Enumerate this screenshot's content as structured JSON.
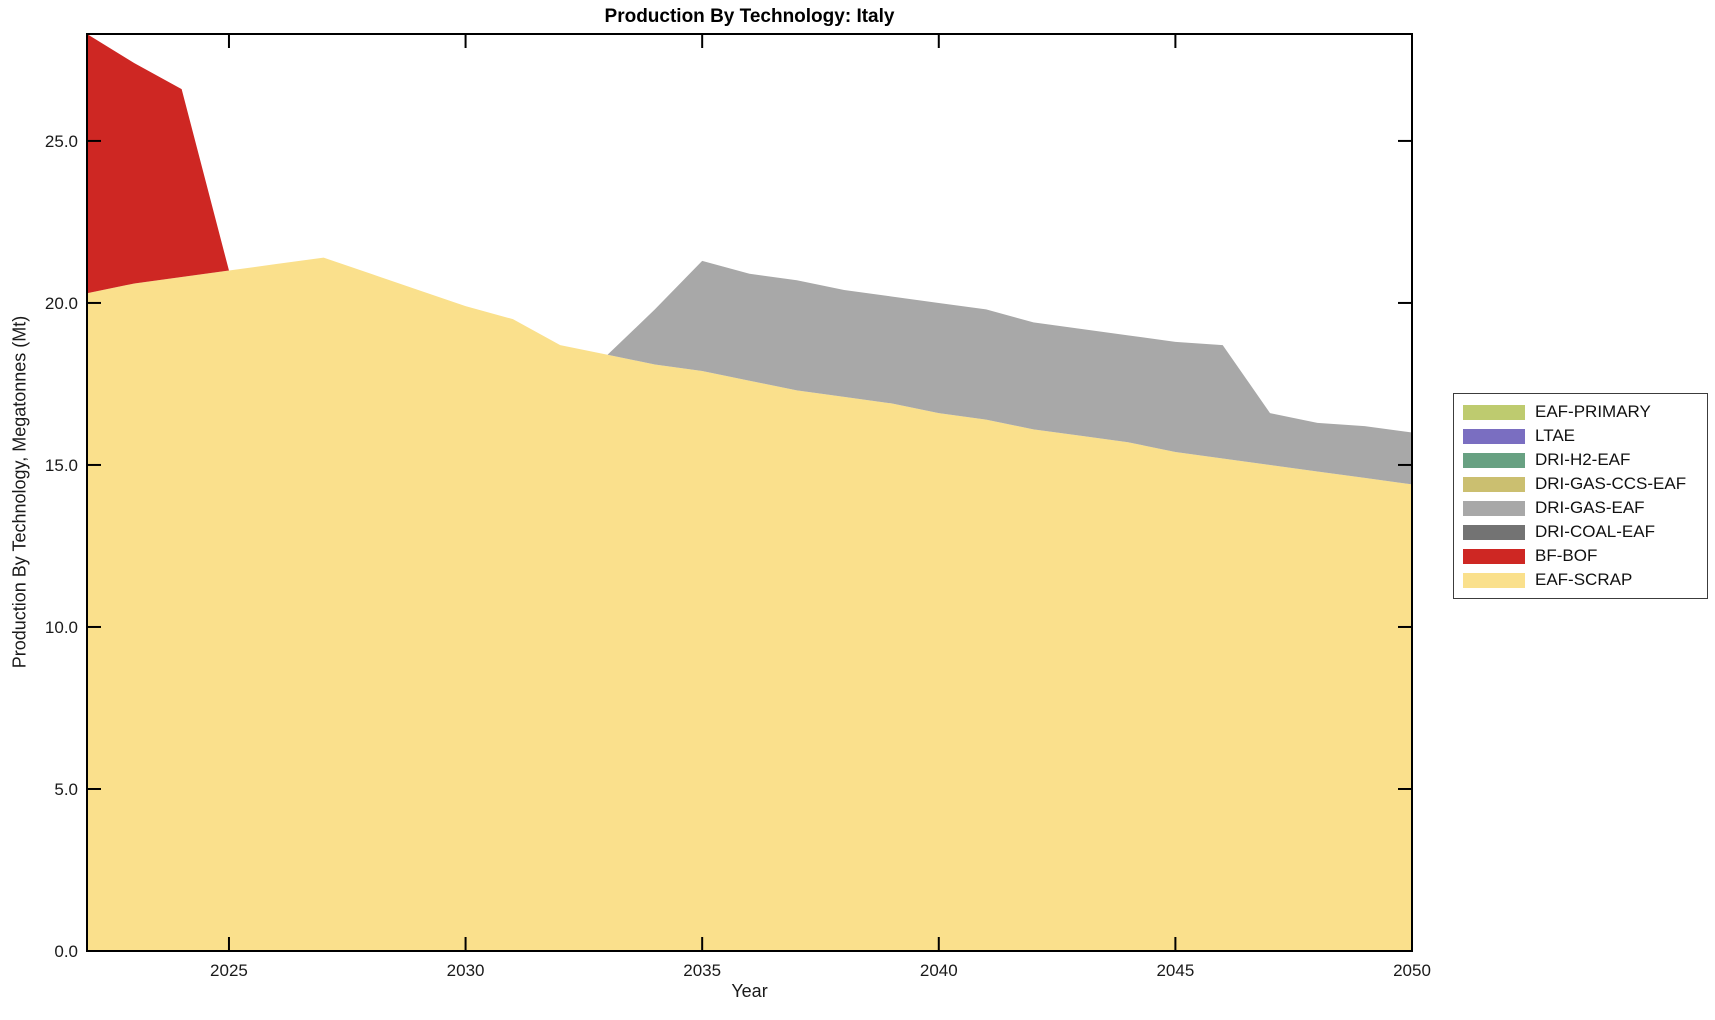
{
  "chart_data": {
    "type": "area",
    "stacked": true,
    "title": "Production By Technology: Italy",
    "xlabel": "Year",
    "ylabel": "Production By Technology, Megatonnes (Mt)",
    "grid": false,
    "legend_position": "outside-right",
    "xlim": [
      2022,
      2050
    ],
    "ylim": [
      0,
      28.3
    ],
    "x_ticks": {
      "values": [
        2025,
        2030,
        2035,
        2040,
        2045,
        2050
      ],
      "labels": [
        "2025",
        "2030",
        "2035",
        "2040",
        "2045",
        "2050"
      ]
    },
    "y_ticks": {
      "values": [
        0,
        5,
        10,
        15,
        20,
        25
      ],
      "labels": [
        "0.0",
        "5.0",
        "10.0",
        "15.0",
        "20.0",
        "25.0"
      ]
    },
    "x": [
      2022,
      2023,
      2024,
      2025,
      2026,
      2027,
      2028,
      2029,
      2030,
      2031,
      2032,
      2033,
      2034,
      2035,
      2036,
      2037,
      2038,
      2039,
      2040,
      2041,
      2042,
      2043,
      2044,
      2045,
      2046,
      2047,
      2048,
      2049,
      2050
    ],
    "series": [
      {
        "name": "EAF-SCRAP",
        "color": "#FAE08C",
        "values": [
          20.3,
          20.6,
          20.8,
          21.0,
          21.2,
          21.4,
          20.9,
          20.4,
          19.9,
          19.5,
          18.7,
          18.4,
          18.1,
          17.9,
          17.6,
          17.3,
          17.1,
          16.9,
          16.6,
          16.4,
          16.1,
          15.9,
          15.7,
          15.4,
          15.2,
          15.0,
          14.8,
          14.6,
          14.4
        ]
      },
      {
        "name": "BF-BOF",
        "color": "#CE2723",
        "values": [
          8.0,
          6.8,
          5.8,
          0,
          0,
          0,
          0,
          0,
          0,
          0,
          0,
          0,
          0,
          0,
          0,
          0,
          0,
          0,
          0,
          0,
          0,
          0,
          0,
          0,
          0,
          0,
          0,
          0,
          0
        ]
      },
      {
        "name": "DRI-COAL-EAF",
        "color": "#737373",
        "values": [
          0,
          0,
          0,
          0,
          0,
          0,
          0,
          0,
          0,
          0,
          0,
          0,
          0,
          0,
          0,
          0,
          0,
          0,
          0,
          0,
          0,
          0,
          0,
          0,
          0,
          0,
          0,
          0,
          0
        ]
      },
      {
        "name": "DRI-GAS-EAF",
        "color": "#A8A8A8",
        "values": [
          0,
          0,
          0,
          0,
          0,
          0,
          0,
          0,
          0,
          0,
          0,
          0,
          1.7,
          3.4,
          3.3,
          3.4,
          3.3,
          3.3,
          3.4,
          3.4,
          3.3,
          3.3,
          3.3,
          3.4,
          3.5,
          1.6,
          1.5,
          1.6,
          1.6
        ]
      },
      {
        "name": "DRI-GAS-CCS-EAF",
        "color": "#CBBF70",
        "values": [
          0,
          0,
          0,
          0,
          0,
          0,
          0,
          0,
          0,
          0,
          0,
          0,
          0,
          0,
          0,
          0,
          0,
          0,
          0,
          0,
          0,
          0,
          0,
          0,
          0,
          0,
          0,
          0,
          0
        ]
      },
      {
        "name": "DRI-H2-EAF",
        "color": "#68A182",
        "values": [
          0,
          0,
          0,
          0,
          0,
          0,
          0,
          0,
          0,
          0,
          0,
          0,
          0,
          0,
          0,
          0,
          0,
          0,
          0,
          0,
          0,
          0,
          0,
          0,
          0,
          0,
          0,
          0,
          0
        ]
      },
      {
        "name": "LTAE",
        "color": "#7A6EC1",
        "values": [
          0,
          0,
          0,
          0,
          0,
          0,
          0,
          0,
          0,
          0,
          0,
          0,
          0,
          0,
          0,
          0,
          0,
          0,
          0,
          0,
          0,
          0,
          0,
          0,
          0,
          0,
          0,
          0,
          0
        ]
      },
      {
        "name": "EAF-PRIMARY",
        "color": "#BECB6F",
        "values": [
          0,
          0,
          0,
          0,
          0,
          0,
          0,
          0,
          0,
          0,
          0,
          0,
          0,
          0,
          0,
          0,
          0,
          0,
          0,
          0,
          0,
          0,
          0,
          0,
          0,
          0,
          0,
          0,
          0
        ]
      }
    ]
  }
}
